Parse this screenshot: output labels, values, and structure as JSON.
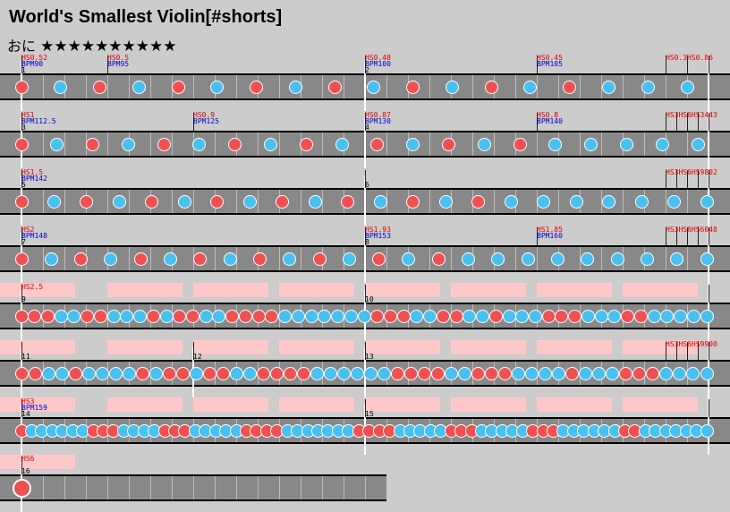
{
  "header": {
    "title": "World's Smallest Violin[#shorts]",
    "difficulty_label": "おに",
    "stars": "★★★★★★★★★★"
  },
  "colors": {
    "don": "#f05050",
    "ka": "#48c0f0",
    "lane": "#888888",
    "gogo": "#ffc8c8",
    "scroll_label": "#e00000",
    "bpm_label": "#0000cc"
  },
  "rows": [
    {
      "measures": [
        "1",
        "2"
      ],
      "labels": [
        {
          "hs": "HS0.52",
          "bpm": "BPM90"
        },
        {
          "hs": "HS0.5",
          "bpm": "BPM95"
        },
        {
          "hs": "HS0.48",
          "bpm": "BPM100"
        },
        {
          "hs": "HS0.45",
          "bpm": "BPM105"
        },
        {
          "hs": "HS0.3",
          "bpm": ""
        },
        {
          "hs": "HS0.86",
          "bpm": ""
        }
      ],
      "notes": "rbrbrbrbrbrbrbrbbb"
    },
    {
      "measures": [
        "3",
        "4"
      ],
      "labels": [
        {
          "hs": "HS1",
          "bpm": "BPM112.5"
        },
        {
          "hs": "HS0.9",
          "bpm": "BPM125"
        },
        {
          "hs": "HS0.87",
          "bpm": "BPM130"
        },
        {
          "hs": "HS0.8",
          "bpm": "BPM140"
        },
        {
          "hs": "HS3HS6HS3443",
          "bpm": ""
        }
      ],
      "notes": "rbrbrbrbrbrbrbrbbbbb"
    },
    {
      "measures": [
        "5",
        "6"
      ],
      "labels": [
        {
          "hs": "HS1.5",
          "bpm": "BPM142"
        },
        {
          "hs": "HS3HS6HS9802",
          "bpm": ""
        }
      ],
      "notes": "rbrbrbrbrbrbrbrbbbbbbb"
    },
    {
      "measures": [
        "7",
        "8"
      ],
      "labels": [
        {
          "hs": "HS2",
          "bpm": "BPM148"
        },
        {
          "hs": "HS1.93",
          "bpm": "BPM153"
        },
        {
          "hs": "HS1.85",
          "bpm": "BPM160"
        },
        {
          "hs": "HS3HS6HS6048",
          "bpm": ""
        }
      ],
      "notes": "rbrbrbrbrbrbrbrbbbbbbbbb"
    },
    {
      "measures": [
        "9",
        "10"
      ],
      "labels": [
        {
          "hs": "HS2.5",
          "bpm": ""
        }
      ],
      "notes": "rrrbbrrbbbrbrrbbrrrrbbbbbbbrrrbbrrbbrbbbrrrbbbrrbbbbb"
    },
    {
      "measures": [
        "11",
        "12",
        "13"
      ],
      "labels": [
        {
          "hs": "HS3HS6HS9900",
          "bpm": ""
        }
      ],
      "notes": "rrbbrbbbbrbrrbrrbbrrrrbbbbbbrrrrbbrrrbbbbrbbbrrrbbbb"
    },
    {
      "measures": [
        "14",
        "15"
      ],
      "labels": [
        {
          "hs": "HS3",
          "bpm": "BPM159"
        }
      ],
      "notes": "rbbbbbbrrrbbbbrrrbbbbbrrrrbbbbbbbrrrrbbbbbrrrbbbbbrrrbbbbbbrrbbbbbbb"
    },
    {
      "measures": [
        "16"
      ],
      "labels": [
        {
          "hs": "HS6",
          "bpm": ""
        }
      ],
      "notes": "R"
    }
  ]
}
